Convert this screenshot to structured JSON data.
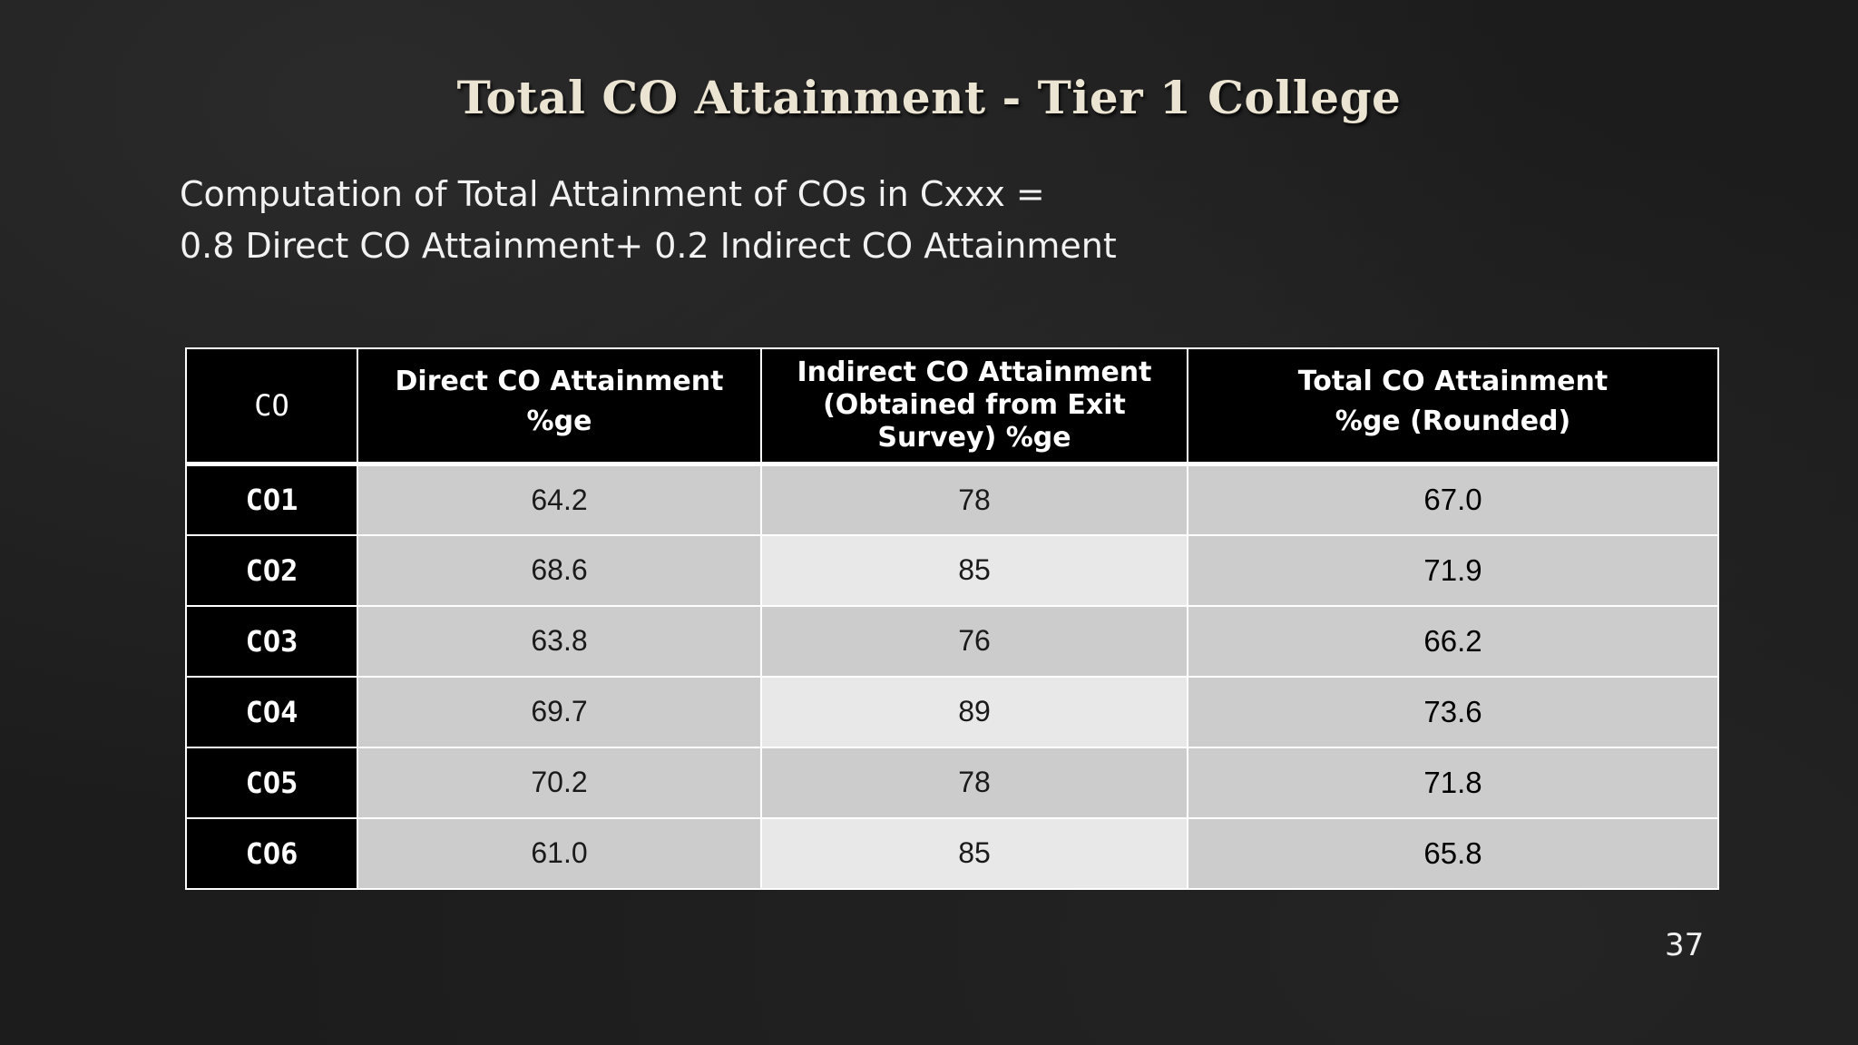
{
  "slide": {
    "title": "Total CO Attainment - Tier 1 College",
    "formula_line1": "Computation of Total Attainment of COs in Cxxx =",
    "formula_line2": "0.8 Direct CO Attainment+ 0.2 Indirect CO Attainment",
    "page_number": "37"
  },
  "table": {
    "headers": {
      "co": "CO",
      "direct_line1": "Direct CO Attainment",
      "direct_line2": "%ge",
      "indirect_line1": "Indirect CO Attainment",
      "indirect_line2": "(Obtained from Exit",
      "indirect_line3": "Survey) %ge",
      "total_line1": "Total CO Attainment",
      "total_line2": "%ge (Rounded)"
    },
    "rows": [
      {
        "co": "CO1",
        "direct": "64.2",
        "indirect": "78",
        "total": "67.0"
      },
      {
        "co": "CO2",
        "direct": "68.6",
        "indirect": "85",
        "total": "71.9"
      },
      {
        "co": "CO3",
        "direct": "63.8",
        "indirect": "76",
        "total": "66.2"
      },
      {
        "co": "CO4",
        "direct": "69.7",
        "indirect": "89",
        "total": "73.6"
      },
      {
        "co": "CO5",
        "direct": "70.2",
        "indirect": "78",
        "total": "71.8"
      },
      {
        "co": "CO6",
        "direct": "61.0",
        "indirect": "85",
        "total": "65.8"
      }
    ]
  }
}
